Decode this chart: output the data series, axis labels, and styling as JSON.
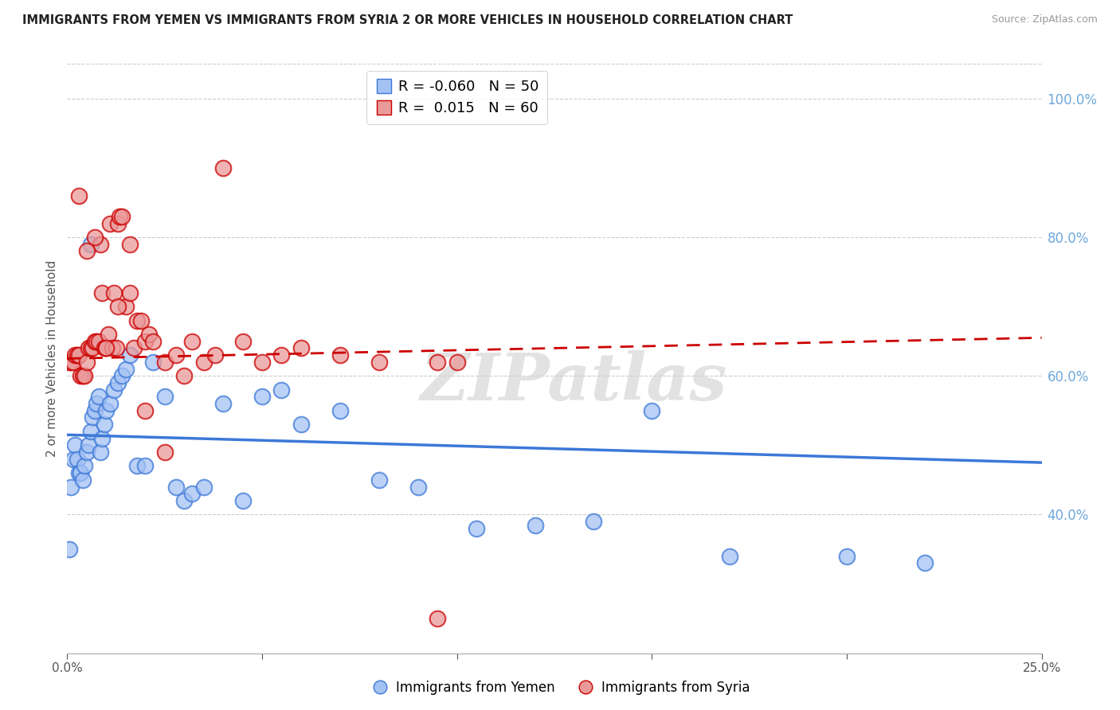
{
  "title": "IMMIGRANTS FROM YEMEN VS IMMIGRANTS FROM SYRIA 2 OR MORE VEHICLES IN HOUSEHOLD CORRELATION CHART",
  "source": "Source: ZipAtlas.com",
  "ylabel": "2 or more Vehicles in Household",
  "right_yticks": [
    40.0,
    60.0,
    80.0,
    100.0
  ],
  "xlim": [
    0.0,
    25.0
  ],
  "ylim": [
    20.0,
    105.0
  ],
  "yemen_R": -0.06,
  "yemen_N": 50,
  "syria_R": 0.015,
  "syria_N": 60,
  "yemen_color": "#a4c2f4",
  "syria_color": "#ea9999",
  "yemen_line_color": "#3c78d8",
  "syria_line_color": "#cc0000",
  "watermark_text": "ZIPatlas",
  "legend_label_1": "Immigrants from Yemen",
  "legend_label_2": "Immigrants from Syria",
  "yemen_scatter_x": [
    0.05,
    0.1,
    0.15,
    0.2,
    0.25,
    0.3,
    0.35,
    0.4,
    0.45,
    0.5,
    0.55,
    0.6,
    0.65,
    0.7,
    0.75,
    0.8,
    0.85,
    0.9,
    0.95,
    1.0,
    1.1,
    1.2,
    1.3,
    1.4,
    1.5,
    1.6,
    1.8,
    2.0,
    2.2,
    2.5,
    2.8,
    3.0,
    3.2,
    3.5,
    4.0,
    4.5,
    5.0,
    5.5,
    6.0,
    7.0,
    8.0,
    9.0,
    10.5,
    12.0,
    13.5,
    15.0,
    17.0,
    20.0,
    22.0,
    0.6
  ],
  "yemen_scatter_y": [
    35.0,
    44.0,
    48.0,
    50.0,
    48.0,
    46.0,
    46.0,
    45.0,
    47.0,
    49.0,
    50.0,
    52.0,
    54.0,
    55.0,
    56.0,
    57.0,
    49.0,
    51.0,
    53.0,
    55.0,
    56.0,
    58.0,
    59.0,
    60.0,
    61.0,
    63.0,
    47.0,
    47.0,
    62.0,
    57.0,
    44.0,
    42.0,
    43.0,
    44.0,
    56.0,
    42.0,
    57.0,
    58.0,
    53.0,
    55.0,
    45.0,
    44.0,
    38.0,
    38.5,
    39.0,
    55.0,
    34.0,
    34.0,
    33.0,
    79.0
  ],
  "syria_scatter_x": [
    0.05,
    0.1,
    0.15,
    0.2,
    0.25,
    0.3,
    0.35,
    0.4,
    0.45,
    0.5,
    0.55,
    0.6,
    0.65,
    0.7,
    0.75,
    0.8,
    0.85,
    0.9,
    0.95,
    1.0,
    1.05,
    1.1,
    1.15,
    1.2,
    1.25,
    1.3,
    1.35,
    1.4,
    1.5,
    1.6,
    1.7,
    1.8,
    1.9,
    2.0,
    2.1,
    2.2,
    2.5,
    2.8,
    3.0,
    3.2,
    3.5,
    4.0,
    4.5,
    5.0,
    5.5,
    6.0,
    7.0,
    8.0,
    9.5,
    10.0,
    0.3,
    0.5,
    0.7,
    1.0,
    1.3,
    1.6,
    2.0,
    2.5,
    3.8,
    9.5
  ],
  "syria_scatter_y": [
    62.0,
    62.0,
    62.0,
    63.0,
    63.0,
    63.0,
    60.0,
    60.0,
    60.0,
    62.0,
    64.0,
    64.0,
    64.0,
    65.0,
    65.0,
    65.0,
    79.0,
    72.0,
    64.0,
    64.0,
    66.0,
    82.0,
    64.0,
    72.0,
    64.0,
    82.0,
    83.0,
    83.0,
    70.0,
    72.0,
    64.0,
    68.0,
    68.0,
    65.0,
    66.0,
    65.0,
    62.0,
    63.0,
    60.0,
    65.0,
    62.0,
    90.0,
    65.0,
    62.0,
    63.0,
    64.0,
    63.0,
    62.0,
    62.0,
    62.0,
    86.0,
    78.0,
    80.0,
    64.0,
    70.0,
    79.0,
    55.0,
    49.0,
    63.0,
    25.0
  ],
  "yemen_trend_x": [
    0.0,
    25.0
  ],
  "yemen_trend_y": [
    51.5,
    47.5
  ],
  "syria_trend_x": [
    0.0,
    25.0
  ],
  "syria_trend_y": [
    62.5,
    65.5
  ]
}
